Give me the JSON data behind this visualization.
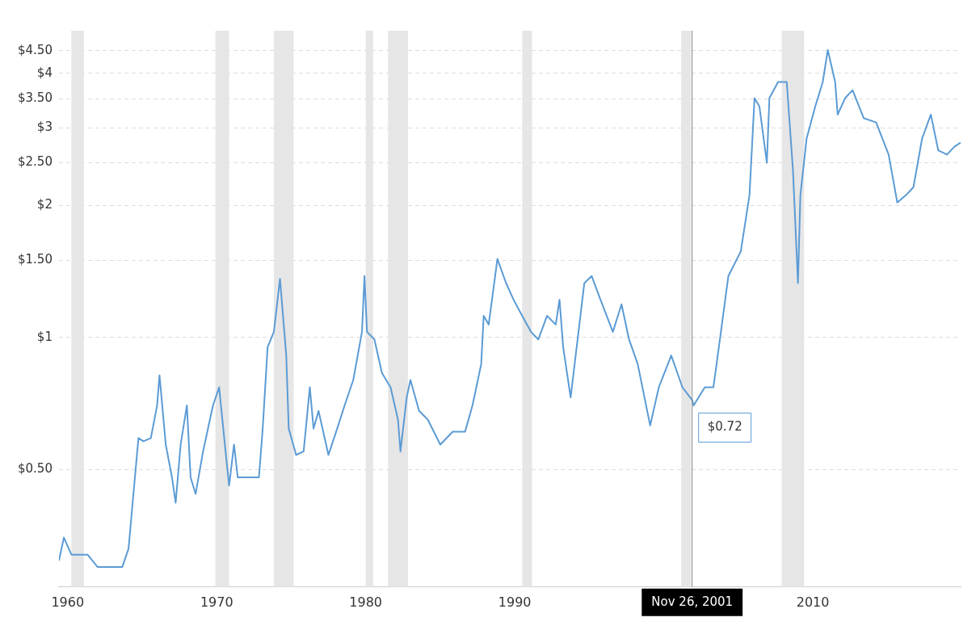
{
  "chart_data": {
    "type": "line",
    "x": [
      "1959-06",
      "1959-10",
      "1960-04",
      "1960-10",
      "1961-05",
      "1962-01",
      "1962-11",
      "1963-09",
      "1964-02",
      "1964-05",
      "1964-10",
      "1965-02",
      "1965-08",
      "1966-01",
      "1966-03",
      "1966-08",
      "1967-01",
      "1967-04",
      "1967-08",
      "1968-01",
      "1968-04",
      "1968-08",
      "1969-02",
      "1969-10",
      "1970-03",
      "1970-09",
      "1970-11",
      "1971-03",
      "1971-06",
      "1972-01",
      "1972-11",
      "1973-02",
      "1973-06",
      "1973-11",
      "1974-04",
      "1974-09",
      "1974-11",
      "1975-05",
      "1975-11",
      "1976-04",
      "1976-07",
      "1976-11",
      "1977-07",
      "1978-02",
      "1978-08",
      "1979-03",
      "1979-10",
      "1979-12",
      "1980-02",
      "1980-08",
      "1981-02",
      "1981-09",
      "1982-03",
      "1982-05",
      "1982-10",
      "1983-01",
      "1983-08",
      "1984-03",
      "1985-01",
      "1985-11",
      "1986-09",
      "1987-03",
      "1987-10",
      "1987-12",
      "1988-04",
      "1988-11",
      "1989-06",
      "1989-12",
      "1990-07",
      "1991-02",
      "1991-08",
      "1992-03",
      "1992-10",
      "1993-01",
      "1993-04",
      "1993-10",
      "1994-02",
      "1994-09",
      "1995-03",
      "1995-10",
      "1996-08",
      "1997-03",
      "1997-09",
      "1998-04",
      "1999-02",
      "1999-09",
      "2000-07",
      "2001-04",
      "2001-11-26",
      "2002-01",
      "2002-10",
      "2003-05",
      "2003-11",
      "2004-05",
      "2005-03",
      "2005-10",
      "2006-02",
      "2006-06",
      "2006-12",
      "2007-02",
      "2007-09",
      "2008-04",
      "2008-09",
      "2009-01",
      "2009-03",
      "2009-08",
      "2010-03",
      "2010-09",
      "2011-01",
      "2011-07",
      "2011-09",
      "2012-03",
      "2012-09",
      "2013-06",
      "2014-04",
      "2015-02",
      "2015-09",
      "2016-04",
      "2016-10",
      "2017-05",
      "2017-12",
      "2018-06",
      "2019-01",
      "2019-07",
      "2019-12"
    ],
    "series": [
      {
        "color": "#5b9bd5",
        "values": [
          0.31,
          0.35,
          0.32,
          0.32,
          0.32,
          0.3,
          0.3,
          0.3,
          0.33,
          0.41,
          0.59,
          0.58,
          0.59,
          0.7,
          0.82,
          0.57,
          0.48,
          0.42,
          0.57,
          0.7,
          0.48,
          0.44,
          0.55,
          0.7,
          0.77,
          0.52,
          0.46,
          0.57,
          0.48,
          0.48,
          0.48,
          0.62,
          0.95,
          1.03,
          1.36,
          0.91,
          0.62,
          0.54,
          0.55,
          0.77,
          0.62,
          0.68,
          0.54,
          0.62,
          0.7,
          0.8,
          1.03,
          1.38,
          1.03,
          0.99,
          0.83,
          0.77,
          0.65,
          0.55,
          0.73,
          0.8,
          0.68,
          0.65,
          0.57,
          0.61,
          0.61,
          0.7,
          0.87,
          1.12,
          1.07,
          1.51,
          1.33,
          1.22,
          1.12,
          1.03,
          0.99,
          1.12,
          1.07,
          1.22,
          0.95,
          0.73,
          0.91,
          1.33,
          1.38,
          1.22,
          1.03,
          1.19,
          0.99,
          0.87,
          0.63,
          0.77,
          0.91,
          0.77,
          0.72,
          0.7,
          0.77,
          0.77,
          1.03,
          1.38,
          1.57,
          2.11,
          3.51,
          3.36,
          2.5,
          3.51,
          3.82,
          3.82,
          2.4,
          1.33,
          2.11,
          2.84,
          3.36,
          3.82,
          4.52,
          3.82,
          3.22,
          3.51,
          3.66,
          3.16,
          3.09,
          2.61,
          2.03,
          2.11,
          2.2,
          2.84,
          3.22,
          2.67,
          2.61,
          2.72,
          2.78
        ]
      }
    ],
    "xlim": [
      "1959-06",
      "2019-12"
    ],
    "xticks": [
      "1960",
      "1970",
      "1980",
      "1990",
      "2010"
    ],
    "ylim": [
      0.27,
      5
    ],
    "yticks": [
      {
        "value": 0.5,
        "label": "$0.50"
      },
      {
        "value": 1,
        "label": "$1"
      },
      {
        "value": 1.5,
        "label": "$1.50"
      },
      {
        "value": 2,
        "label": "$2"
      },
      {
        "value": 2.5,
        "label": "$2.50"
      },
      {
        "value": 3,
        "label": "$3"
      },
      {
        "value": 3.5,
        "label": "$3.50"
      },
      {
        "value": 4,
        "label": "$4"
      },
      {
        "value": 4.5,
        "label": "$4.50"
      }
    ],
    "log": "y",
    "grid": "y",
    "legend": false,
    "marker": "none",
    "line_style": "solid",
    "bands": [
      {
        "axis": "x",
        "from": "1960-04",
        "to": "1961-02",
        "color": "#e6e6e6"
      },
      {
        "axis": "x",
        "from": "1969-12",
        "to": "1970-11",
        "color": "#e6e6e6"
      },
      {
        "axis": "x",
        "from": "1973-11",
        "to": "1975-03",
        "color": "#e6e6e6"
      },
      {
        "axis": "x",
        "from": "1980-01",
        "to": "1980-07",
        "color": "#e6e6e6"
      },
      {
        "axis": "x",
        "from": "1981-07",
        "to": "1982-11",
        "color": "#e6e6e6"
      },
      {
        "axis": "x",
        "from": "1990-07",
        "to": "1991-03",
        "color": "#e6e6e6"
      },
      {
        "axis": "x",
        "from": "2001-03",
        "to": "2001-11",
        "color": "#e6e6e6"
      },
      {
        "axis": "x",
        "from": "2007-12",
        "to": "2009-06",
        "color": "#e6e6e6"
      }
    ],
    "ref_lines": [
      {
        "axis": "x",
        "value": "2001-11-26",
        "label": "Nov 26, 2001",
        "color": "#888888"
      }
    ],
    "annotations": [
      {
        "text": "$0.72",
        "x": "2001-11-26",
        "y": 0.72
      }
    ]
  }
}
